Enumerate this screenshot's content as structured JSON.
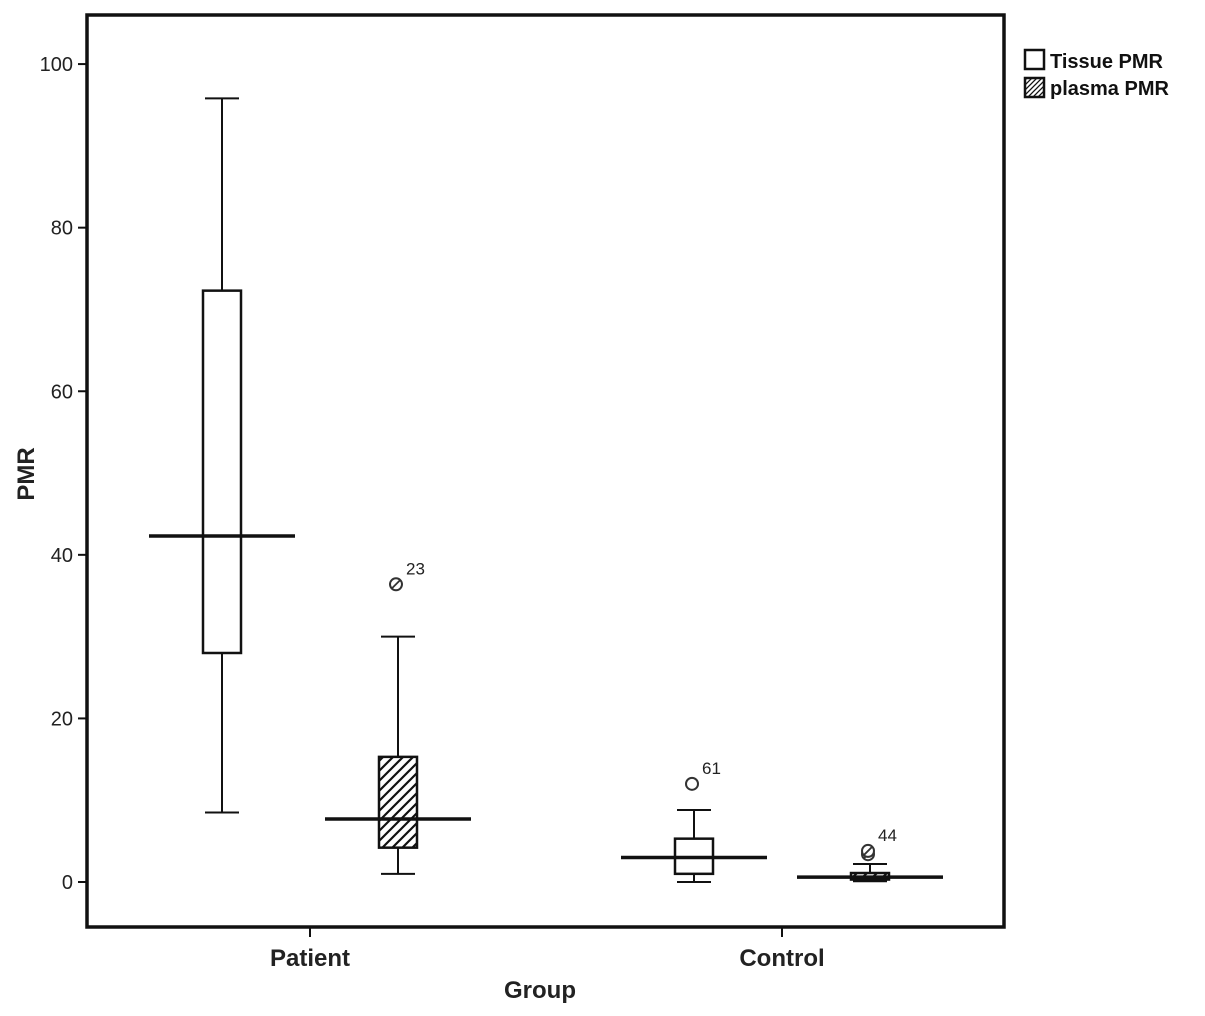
{
  "chart_data": {
    "type": "box",
    "xlabel": "Group",
    "ylabel": "PMR",
    "ylim": [
      -5.5,
      106
    ],
    "yticks": [
      0,
      20,
      40,
      60,
      80,
      100
    ],
    "categories": [
      "Patient",
      "Control"
    ],
    "grid": false,
    "legend_position": "top-right-outside",
    "series": [
      {
        "name": "Tissue PMR",
        "fill": "open",
        "boxes": [
          {
            "category": "Patient",
            "min": 8.5,
            "q1": 28,
            "median": 42.3,
            "q3": 72.3,
            "max": 95.8,
            "outliers": []
          },
          {
            "category": "Control",
            "min": 0,
            "q1": 1,
            "median": 3,
            "q3": 5.3,
            "max": 8.8,
            "outliers": [
              {
                "value": 12,
                "label": "61"
              }
            ]
          }
        ]
      },
      {
        "name": "plasma PMR",
        "fill": "hatched",
        "boxes": [
          {
            "category": "Patient",
            "min": 1,
            "q1": 4.2,
            "median": 7.7,
            "q3": 15.3,
            "max": 30,
            "outliers": [
              {
                "value": 36.4,
                "label": "23"
              }
            ]
          },
          {
            "category": "Control",
            "min": 0.1,
            "q1": 0.3,
            "median": 0.6,
            "q3": 1.1,
            "max": 2.2,
            "outliers": [
              {
                "value": 3.4,
                "label": ""
              },
              {
                "value": 3.8,
                "label": "44"
              }
            ]
          }
        ]
      }
    ]
  }
}
